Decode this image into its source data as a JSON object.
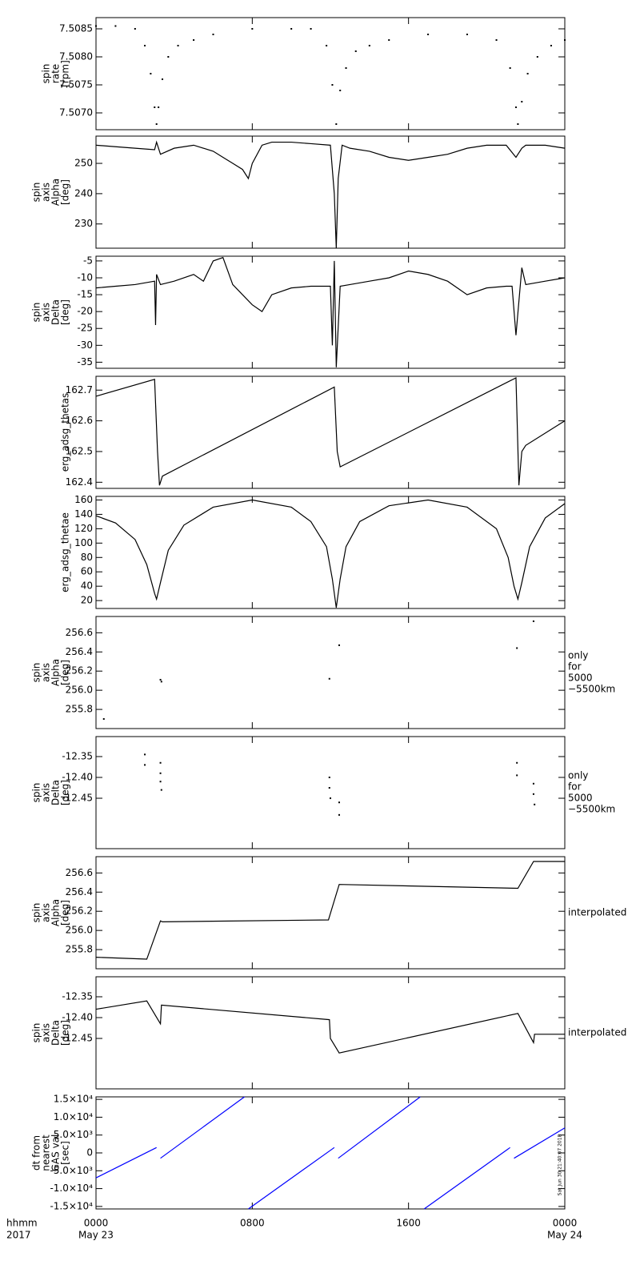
{
  "chart_data": [
    {
      "type": "scatter",
      "ylabel": [
        "spin",
        "rate",
        "[rpm]"
      ],
      "color": "#000000",
      "ylim": [
        7.5067,
        7.5087
      ],
      "yticks": [
        {
          "value": 7.507,
          "label": "7.5070"
        },
        {
          "value": 7.5075,
          "label": "7.5075"
        },
        {
          "value": 7.508,
          "label": "7.5080"
        },
        {
          "value": 7.5085,
          "label": "7.5085"
        }
      ],
      "x": [
        0,
        1,
        2,
        2.5,
        2.8,
        3.0,
        3.1,
        3.2,
        3.4,
        3.7,
        4.2,
        5,
        6,
        8,
        10,
        11,
        11.8,
        12.1,
        12.3,
        12.5,
        12.8,
        13.3,
        14,
        15,
        17,
        19,
        20.5,
        21.2,
        21.5,
        21.6,
        21.8,
        22.1,
        22.6,
        23.3,
        24
      ],
      "values": [
        7.50855,
        7.50855,
        7.5085,
        7.5082,
        7.5077,
        7.5071,
        7.5068,
        7.5071,
        7.5076,
        7.508,
        7.5082,
        7.5083,
        7.5084,
        7.5085,
        7.5085,
        7.5085,
        7.5082,
        7.5075,
        7.5068,
        7.5074,
        7.5078,
        7.5081,
        7.5082,
        7.5083,
        7.5084,
        7.5084,
        7.5083,
        7.5078,
        7.5071,
        7.5068,
        7.5072,
        7.5077,
        7.508,
        7.5082,
        7.5083
      ]
    },
    {
      "type": "line",
      "ylabel": [
        "spin",
        "axis",
        "Alpha",
        "[deg]"
      ],
      "color": "#000000",
      "ylim": [
        222,
        259
      ],
      "yticks": [
        230,
        240,
        250
      ],
      "x": [
        0,
        1,
        2,
        3,
        3.1,
        3.3,
        4,
        5,
        6,
        6.5,
        7,
        7.5,
        7.8,
        8,
        8.5,
        9,
        10,
        11,
        12,
        12.2,
        12.3,
        12.4,
        12.6,
        13,
        14,
        15,
        16,
        17,
        18,
        19,
        20,
        21,
        21.5,
        21.8,
        22,
        23,
        24
      ],
      "values": [
        256,
        255.5,
        255,
        254.5,
        257,
        253,
        255,
        256,
        254,
        252,
        250,
        248,
        245,
        250,
        256,
        257,
        257,
        256.5,
        256,
        240,
        222,
        245,
        256,
        255,
        254,
        252,
        251,
        252,
        253,
        255,
        256,
        256,
        252,
        255,
        256,
        256,
        255
      ]
    },
    {
      "type": "line",
      "ylabel": [
        "spin",
        "axis",
        "Delta",
        "[deg]"
      ],
      "color": "#000000",
      "ylim": [
        -36.8,
        -3.6
      ],
      "yticks": [
        -35,
        -30,
        -25,
        -20,
        -15,
        -10,
        -5
      ],
      "x": [
        0,
        1,
        2,
        3,
        3.05,
        3.1,
        3.3,
        4,
        5,
        5.5,
        6,
        6.5,
        7,
        7.5,
        8,
        8.5,
        9,
        10,
        11,
        12,
        12.1,
        12.2,
        12.3,
        12.5,
        13,
        14,
        15,
        16,
        17,
        18,
        19,
        20,
        21,
        21.3,
        21.5,
        21.8,
        22,
        23,
        24
      ],
      "values": [
        -13,
        -12.5,
        -12,
        -11,
        -24,
        -9,
        -12,
        -11,
        -9,
        -11,
        -5,
        -4,
        -12,
        -15,
        -18,
        -20,
        -15,
        -13,
        -12.5,
        -12.5,
        -30,
        -5,
        -36.5,
        -12.5,
        -12,
        -11,
        -10,
        -8,
        -9,
        -11,
        -15,
        -13,
        -12.5,
        -12.5,
        -27,
        -7,
        -12,
        -11,
        -10
      ]
    },
    {
      "type": "line",
      "ylabel": [
        "erg_adsg_thetas"
      ],
      "color": "#000000",
      "ylim": [
        162.38,
        162.745
      ],
      "yticks": [
        162.4,
        162.5,
        162.6,
        162.7
      ],
      "x": [
        0,
        3.0,
        3.15,
        3.25,
        3.4,
        12.2,
        12.35,
        12.5,
        21.5,
        21.65,
        21.8,
        22.0,
        24
      ],
      "values": [
        162.68,
        162.735,
        162.5,
        162.39,
        162.42,
        162.71,
        162.5,
        162.45,
        162.74,
        162.39,
        162.5,
        162.52,
        162.6
      ]
    },
    {
      "type": "line",
      "ylabel": [
        "erg_adsg_thetae"
      ],
      "color": "#000000",
      "ylim": [
        9,
        165
      ],
      "yticks": [
        20,
        40,
        60,
        80,
        100,
        120,
        140,
        160
      ],
      "x": [
        0,
        1,
        2,
        2.6,
        3.0,
        3.1,
        3.3,
        3.7,
        4.5,
        6,
        8,
        10,
        11,
        11.8,
        12.1,
        12.3,
        12.5,
        12.8,
        13.5,
        15,
        17,
        19,
        20.5,
        21.1,
        21.4,
        21.6,
        21.8,
        22.2,
        23,
        24
      ],
      "values": [
        138,
        128,
        105,
        70,
        30,
        22,
        45,
        90,
        125,
        150,
        160,
        150,
        130,
        95,
        50,
        10,
        50,
        95,
        130,
        152,
        160,
        150,
        120,
        80,
        40,
        22,
        45,
        95,
        135,
        155
      ]
    },
    {
      "type": "scatter",
      "ylabel": [
        "spin",
        "axis",
        "Alpha",
        "[deg]"
      ],
      "note": [
        "only",
        "for",
        "5000",
        "−5500km"
      ],
      "color": "#000000",
      "ylim": [
        255.6,
        256.77
      ],
      "yticks": [
        255.8,
        {
          "value": 256,
          "label": "256.0"
        },
        256.2,
        256.4,
        256.6
      ],
      "x": [
        0.4,
        3.3,
        3.35,
        11.95,
        12.45,
        21.55,
        22.4
      ],
      "values": [
        255.7,
        256.11,
        256.09,
        256.12,
        256.47,
        256.44,
        256.72
      ]
    },
    {
      "type": "scatter",
      "ylabel": [
        "spin",
        "axis",
        "Delta",
        "[deg]"
      ],
      "note": [
        "only",
        "for",
        "5000",
        "−5500km"
      ],
      "color": "#000000",
      "ylim": [
        -12.571,
        -12.302
      ],
      "yticks": [
        -12.35,
        {
          "value": -12.4,
          "label": "-12.40"
        },
        -12.45
      ],
      "x": [
        2.5,
        2.5,
        3.3,
        3.3,
        3.3,
        3.35,
        11.95,
        11.95,
        12.0,
        12.45,
        12.45,
        21.55,
        21.55,
        22.4,
        22.4,
        22.45
      ],
      "values": [
        -12.345,
        -12.37,
        -12.365,
        -12.39,
        -12.41,
        -12.43,
        -12.4,
        -12.425,
        -12.45,
        -12.46,
        -12.49,
        -12.365,
        -12.395,
        -12.415,
        -12.44,
        -12.465
      ]
    },
    {
      "type": "line",
      "ylabel": [
        "spin",
        "axis",
        "Alpha",
        "[deg]"
      ],
      "note": [
        "interpolated"
      ],
      "color": "#000000",
      "ylim": [
        255.6,
        256.77
      ],
      "yticks": [
        255.8,
        {
          "value": 256,
          "label": "256.0"
        },
        256.2,
        256.4,
        256.6
      ],
      "x": [
        0,
        2.6,
        3.3,
        3.4,
        11.9,
        12.45,
        21.6,
        22.4,
        24
      ],
      "values": [
        255.72,
        255.7,
        256.1,
        256.09,
        256.11,
        256.48,
        256.44,
        256.72,
        256.72
      ]
    },
    {
      "type": "line",
      "ylabel": [
        "spin",
        "axis",
        "Delta",
        "[deg]"
      ],
      "note": [
        "interpolated"
      ],
      "color": "#000000",
      "ylim": [
        -12.571,
        -12.302
      ],
      "yticks": [
        -12.35,
        {
          "value": -12.4,
          "label": "-12.40"
        },
        -12.45
      ],
      "x": [
        0,
        2.6,
        3.3,
        3.35,
        11.95,
        12.0,
        12.45,
        21.6,
        22.4,
        22.45,
        24
      ],
      "values": [
        -12.38,
        -12.36,
        -12.415,
        -12.37,
        -12.405,
        -12.45,
        -12.485,
        -12.39,
        -12.46,
        -12.44,
        -12.44
      ]
    },
    {
      "type": "line",
      "ylabel": [
        "dt from",
        "nearest",
        "GAS val",
        "[sec]"
      ],
      "color": "#0000ff",
      "ylim": [
        -15700,
        15700
      ],
      "yticks": [
        {
          "value": 15000,
          "label": "1.5×10⁴"
        },
        {
          "value": 10000,
          "label": "1.0×10⁴"
        },
        {
          "value": 5000,
          "label": "5.0×10³"
        },
        0,
        {
          "value": -5000,
          "label": "-5.0×10³"
        },
        {
          "value": -10000,
          "label": "-1.0×10⁴"
        },
        {
          "value": -15000,
          "label": "-1.5×10⁴"
        }
      ],
      "x": [
        0,
        3.1,
        3.15,
        3.3,
        7.6,
        7.7,
        7.8,
        12.2,
        12.3,
        12.4,
        16.6,
        16.7,
        16.8,
        21.2,
        21.3,
        21.4,
        24
      ],
      "values": [
        -7000,
        1500,
        null,
        -1500,
        15700,
        null,
        -15700,
        1500,
        null,
        -1500,
        15700,
        null,
        -15700,
        1500,
        null,
        -1500,
        7000
      ]
    }
  ],
  "x_axis": {
    "xlim": [
      0,
      24
    ],
    "xticks": [
      {
        "value": 0,
        "label": "0000"
      },
      {
        "value": 8,
        "label": "0800"
      },
      {
        "value": 16,
        "label": "1600"
      },
      {
        "value": 24,
        "label": "0000"
      }
    ],
    "date_labels": [
      "May 23",
      null,
      null,
      "May 24"
    ],
    "row_labels": [
      "hhmm",
      "2017"
    ]
  },
  "stamp": "Sat Jun 30 21:40:07 2018"
}
